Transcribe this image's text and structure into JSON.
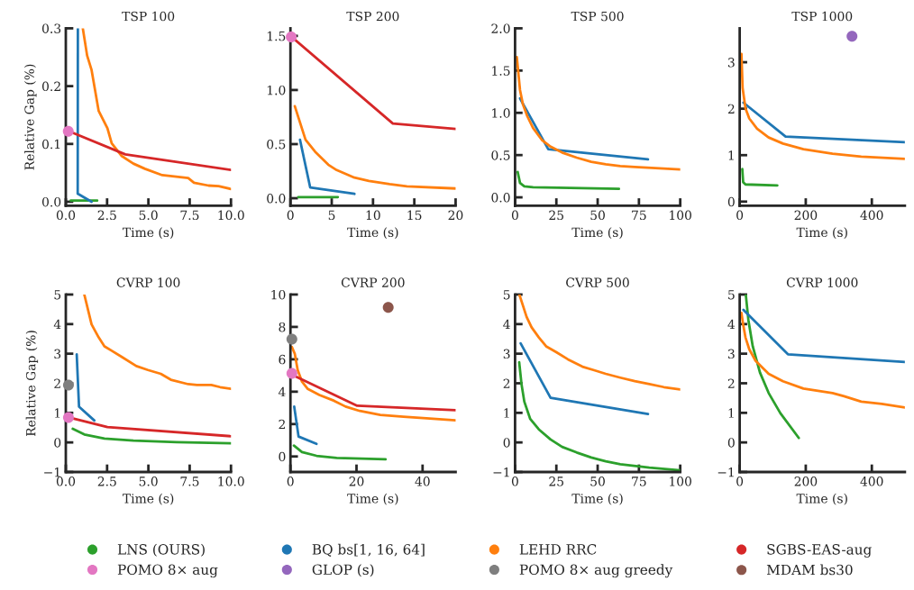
{
  "chart_data": [
    {
      "type": "line",
      "title": "TSP 100",
      "xlabel": "Time (s)",
      "ylabel": "Relative Gap (%)",
      "legend": "bottom",
      "xlim": [
        0,
        10
      ],
      "xticks": [
        {
          "value": 0,
          "label": "0.0"
        },
        {
          "value": 2.5,
          "label": "2.5"
        },
        {
          "value": 5,
          "label": "5.0"
        },
        {
          "value": 7.5,
          "label": "7.5"
        },
        {
          "value": 10,
          "label": "10.0"
        }
      ],
      "ylim": [
        -0.007,
        0.3
      ],
      "yticks": [
        {
          "value": 0,
          "label": "0.0"
        },
        0.1,
        0.2,
        0.3
      ],
      "series": [
        {
          "name": "LNS (OURS)",
          "color": "#2ca02c",
          "x": [
            0.3,
            1.9
          ],
          "values": [
            0.002,
            0.002
          ]
        },
        {
          "name": "BQ bs[1, 16, 64]",
          "color": "#1f77b4",
          "x": [
            0.73,
            0.72,
            1.56
          ],
          "values": [
            0.3,
            0.014,
            0.0
          ]
        },
        {
          "name": "LEHD RRC",
          "color": "#ff7f0e",
          "x": [
            1.03,
            1.29,
            1.56,
            1.99,
            2.52,
            2.78,
            3.39,
            4.09,
            4.79,
            5.84,
            7.41,
            7.76,
            8.64,
            9.25,
            10
          ],
          "values": [
            0.3,
            0.253,
            0.228,
            0.157,
            0.127,
            0.101,
            0.079,
            0.066,
            0.057,
            0.046,
            0.041,
            0.033,
            0.028,
            0.027,
            0.022
          ]
        },
        {
          "name": "SGBS-EAS-aug",
          "color": "#d62728",
          "x": [
            0.1,
            3.6,
            10
          ],
          "values": [
            0.123,
            0.082,
            0.055
          ]
        },
        {
          "name": "POMO 8× aug",
          "type": "scatter",
          "color": "#e377c2",
          "x": [
            0.15
          ],
          "values": [
            0.122
          ]
        }
      ]
    },
    {
      "type": "line",
      "title": "TSP 200",
      "xlabel": "Time (s)",
      "xlim": [
        0,
        20
      ],
      "xticks": [
        0,
        5,
        10,
        15,
        20
      ],
      "ylim": [
        -0.07,
        1.57
      ],
      "yticks": [
        {
          "value": 0,
          "label": "0.0"
        },
        0.5,
        {
          "value": 1,
          "label": "1.0"
        },
        1.5
      ],
      "series": [
        {
          "name": "LNS (OURS)",
          "color": "#2ca02c",
          "x": [
            0.95,
            5.74
          ],
          "values": [
            0.01,
            0.01
          ]
        },
        {
          "name": "BQ bs[1, 16, 64]",
          "color": "#1f77b4",
          "x": [
            1.16,
            2.39,
            7.75
          ],
          "values": [
            0.54,
            0.1,
            0.04
          ]
        },
        {
          "name": "LEHD RRC",
          "color": "#ff7f0e",
          "x": [
            0.53,
            0.99,
            1.83,
            2.99,
            4.58,
            5.6,
            7.75,
            9.5,
            12,
            14.1,
            20
          ],
          "values": [
            0.85,
            0.74,
            0.54,
            0.43,
            0.31,
            0.26,
            0.19,
            0.16,
            0.13,
            0.11,
            0.09
          ]
        },
        {
          "name": "SGBS-EAS-aug",
          "color": "#d62728",
          "x": [
            0,
            12.4,
            20
          ],
          "values": [
            1.5,
            0.69,
            0.64
          ]
        },
        {
          "name": "POMO 8× aug",
          "type": "scatter",
          "color": "#e377c2",
          "x": [
            0.1
          ],
          "values": [
            1.49
          ]
        }
      ]
    },
    {
      "type": "line",
      "title": "TSP 500",
      "xlabel": "Time (s)",
      "xlim": [
        0,
        100
      ],
      "xticks": [
        0,
        25,
        50,
        75,
        100
      ],
      "ylim": [
        -0.1,
        2.0
      ],
      "yticks": [
        {
          "value": 0,
          "label": "0.0"
        },
        0.5,
        {
          "value": 1,
          "label": "1.0"
        },
        1.5,
        {
          "value": 2,
          "label": "2.0"
        }
      ],
      "series": [
        {
          "name": "LNS (OURS)",
          "color": "#2ca02c",
          "x": [
            1.6,
            3.0,
            5.6,
            10.9,
            62.9
          ],
          "values": [
            0.3,
            0.17,
            0.13,
            0.12,
            0.1
          ]
        },
        {
          "name": "BQ bs[1, 16, 64]",
          "color": "#1f77b4",
          "x": [
            3.0,
            20.1,
            80.5
          ],
          "values": [
            1.17,
            0.57,
            0.45
          ]
        },
        {
          "name": "LEHD RRC",
          "color": "#ff7f0e",
          "x": [
            1.06,
            3.0,
            4.75,
            7.4,
            10.9,
            16.2,
            21.5,
            28.5,
            37.3,
            46.1,
            54.9,
            63.7,
            72.5,
            100
          ],
          "values": [
            1.66,
            1.27,
            1.1,
            0.96,
            0.82,
            0.68,
            0.6,
            0.53,
            0.47,
            0.42,
            0.39,
            0.37,
            0.36,
            0.33
          ]
        }
      ]
    },
    {
      "type": "line",
      "title": "TSP 1000",
      "xlabel": "Time (s)",
      "xlim": [
        0,
        500
      ],
      "xticks": [
        0,
        200,
        400
      ],
      "ylim": [
        -0.09,
        3.73
      ],
      "yticks": [
        0,
        1,
        2,
        3
      ],
      "series": [
        {
          "name": "LNS (OURS)",
          "color": "#2ca02c",
          "x": [
            7.9,
            10.5,
            17.5,
            114
          ],
          "values": [
            0.7,
            0.42,
            0.37,
            0.35
          ]
        },
        {
          "name": "BQ bs[1, 16, 64]",
          "color": "#1f77b4",
          "x": [
            11.4,
            139,
            500
          ],
          "values": [
            2.13,
            1.4,
            1.28
          ]
        },
        {
          "name": "LEHD RRC",
          "color": "#ff7f0e",
          "x": [
            5.3,
            8.8,
            17.5,
            29,
            52.6,
            87.7,
            131,
            193,
            281,
            368,
            500
          ],
          "values": [
            3.18,
            2.45,
            2.01,
            1.79,
            1.57,
            1.38,
            1.25,
            1.13,
            1.03,
            0.97,
            0.92
          ]
        },
        {
          "name": "GLOP (s)",
          "type": "scatter",
          "color": "#9467bd",
          "x": [
            340
          ],
          "values": [
            3.56
          ]
        }
      ]
    },
    {
      "type": "line",
      "title": "CVRP 100",
      "xlabel": "Time (s)",
      "ylabel": "Relative Gap (%)",
      "xlim": [
        0,
        10
      ],
      "xticks": [
        {
          "value": 0,
          "label": "0.0"
        },
        {
          "value": 2.5,
          "label": "2.5"
        },
        {
          "value": 5,
          "label": "5.0"
        },
        {
          "value": 7.5,
          "label": "7.5"
        },
        {
          "value": 10,
          "label": "10.0"
        }
      ],
      "ylim": [
        -1,
        5
      ],
      "yticks": [
        {
          "value": -1,
          "label": "−1"
        },
        0,
        1,
        2,
        3,
        4,
        5
      ],
      "series": [
        {
          "name": "LNS (OURS)",
          "color": "#2ca02c",
          "x": [
            0.42,
            1.12,
            2.34,
            4.09,
            6.71,
            10
          ],
          "values": [
            0.46,
            0.27,
            0.13,
            0.06,
            0.01,
            -0.03
          ]
        },
        {
          "name": "BQ bs[1, 16, 64]",
          "color": "#1f77b4",
          "x": [
            0.66,
            0.8,
            1.73
          ],
          "values": [
            2.98,
            1.21,
            0.74
          ]
        },
        {
          "name": "LEHD RRC",
          "color": "#ff7f0e",
          "x": [
            1.12,
            1.56,
            1.99,
            2.34,
            2.78,
            3.39,
            4.27,
            4.97,
            5.75,
            6.36,
            7.41,
            7.94,
            8.81,
            9.34,
            10
          ],
          "values": [
            5.0,
            3.99,
            3.55,
            3.25,
            3.1,
            2.89,
            2.58,
            2.45,
            2.32,
            2.12,
            1.97,
            1.94,
            1.94,
            1.87,
            1.81
          ]
        },
        {
          "name": "SGBS-EAS-aug",
          "color": "#d62728",
          "x": [
            0.07,
            2.52,
            10
          ],
          "values": [
            0.86,
            0.52,
            0.21
          ]
        },
        {
          "name": "POMO 8× aug",
          "type": "scatter",
          "color": "#e377c2",
          "x": [
            0.16
          ],
          "values": [
            0.84
          ]
        },
        {
          "name": "POMO 8× aug greedy",
          "type": "scatter",
          "color": "#7f7f7f",
          "x": [
            0.16
          ],
          "values": [
            1.94
          ]
        }
      ]
    },
    {
      "type": "line",
      "title": "CVRP 200",
      "xlabel": "Time (s)",
      "xlim": [
        0,
        50
      ],
      "xticks": [
        0,
        20,
        40
      ],
      "ylim": [
        -0.96,
        10
      ],
      "yticks": [
        0,
        2,
        4,
        6,
        8,
        10
      ],
      "series": [
        {
          "name": "LNS (OURS)",
          "color": "#2ca02c",
          "x": [
            1.05,
            3.5,
            7.9,
            14,
            28.8
          ],
          "values": [
            0.67,
            0.27,
            0.04,
            -0.09,
            -0.18
          ]
        },
        {
          "name": "BQ bs[1, 16, 64]",
          "color": "#1f77b4",
          "x": [
            1.14,
            2.46,
            7.9
          ],
          "values": [
            3.08,
            1.23,
            0.78
          ]
        },
        {
          "name": "LEHD RRC",
          "color": "#ff7f0e",
          "x": [
            0.44,
            1.32,
            2.19,
            3.5,
            5.26,
            8.77,
            13.2,
            16.7,
            21,
            27.2,
            34.2,
            41.2,
            50
          ],
          "values": [
            6.76,
            6.34,
            5.34,
            4.62,
            4.17,
            3.8,
            3.44,
            3.08,
            2.81,
            2.57,
            2.45,
            2.36,
            2.23
          ]
        },
        {
          "name": "SGBS-EAS-aug",
          "color": "#d62728",
          "x": [
            0.18,
            20.2,
            50
          ],
          "values": [
            5.07,
            3.13,
            2.86
          ]
        },
        {
          "name": "MDAM bs30",
          "type": "scatter",
          "color": "#8c564b",
          "x": [
            29.6
          ],
          "values": [
            9.2
          ]
        },
        {
          "name": "POMO 8× aug",
          "type": "scatter",
          "color": "#e377c2",
          "x": [
            0.44
          ],
          "values": [
            5.13
          ]
        },
        {
          "name": "POMO 8× aug greedy",
          "type": "scatter",
          "color": "#7f7f7f",
          "x": [
            0.44
          ],
          "values": [
            7.25
          ]
        }
      ]
    },
    {
      "type": "line",
      "title": "CVRP 500",
      "xlabel": "Time (s)",
      "xlim": [
        0,
        100
      ],
      "xticks": [
        0,
        25,
        50,
        75,
        100
      ],
      "ylim": [
        -1,
        5
      ],
      "yticks": [
        {
          "value": -1,
          "label": "−1"
        },
        0,
        1,
        2,
        3,
        4,
        5
      ],
      "series": [
        {
          "name": "LNS (OURS)",
          "color": "#2ca02c",
          "x": [
            2.5,
            3.9,
            5.6,
            9.2,
            14.4,
            21.5,
            28.5,
            37.3,
            46.1,
            54.9,
            63.7,
            81.3,
            100
          ],
          "values": [
            2.71,
            1.97,
            1.38,
            0.79,
            0.44,
            0.1,
            -0.15,
            -0.34,
            -0.51,
            -0.64,
            -0.74,
            -0.85,
            -0.94
          ]
        },
        {
          "name": "BQ bs[1, 16, 64]",
          "color": "#1f77b4",
          "x": [
            3.35,
            21.5,
            80.5
          ],
          "values": [
            3.35,
            1.51,
            0.96
          ]
        },
        {
          "name": "LEHD RRC",
          "color": "#ff7f0e",
          "x": [
            2.6,
            4.75,
            7.0,
            10,
            14.4,
            18.8,
            25,
            32,
            40.8,
            47.9,
            54.9,
            63.7,
            72.5,
            81.3,
            90.1,
            100
          ],
          "values": [
            5.0,
            4.63,
            4.24,
            3.89,
            3.55,
            3.25,
            3.05,
            2.81,
            2.56,
            2.44,
            2.32,
            2.19,
            2.07,
            1.97,
            1.87,
            1.79
          ]
        }
      ]
    },
    {
      "type": "line",
      "title": "CVRP 1000",
      "xlabel": "Time (s)",
      "xlim": [
        0,
        500
      ],
      "xticks": [
        0,
        200,
        400
      ],
      "ylim": [
        -1,
        5
      ],
      "yticks": [
        {
          "value": -1,
          "label": "−1"
        },
        0,
        1,
        2,
        3,
        4,
        5
      ],
      "series": [
        {
          "name": "LNS (OURS)",
          "color": "#2ca02c",
          "x": [
            18.4,
            26.3,
            39.5,
            61.4,
            87.7,
            123,
            179
          ],
          "values": [
            5.0,
            4.14,
            3.25,
            2.36,
            1.67,
            0.99,
            0.15
          ]
        },
        {
          "name": "BQ bs[1, 16, 64]",
          "color": "#1f77b4",
          "x": [
            11.4,
            146,
            500
          ],
          "values": [
            4.48,
            2.98,
            2.72
          ]
        },
        {
          "name": "LEHD RRC",
          "color": "#ff7f0e",
          "x": [
            5.3,
            10.5,
            17.5,
            29,
            48,
            87.7,
            131,
            193,
            281,
            316,
            368,
            430,
            500
          ],
          "values": [
            4.38,
            3.99,
            3.55,
            3.15,
            2.76,
            2.32,
            2.07,
            1.82,
            1.67,
            1.56,
            1.38,
            1.3,
            1.18
          ]
        }
      ]
    }
  ]
}
